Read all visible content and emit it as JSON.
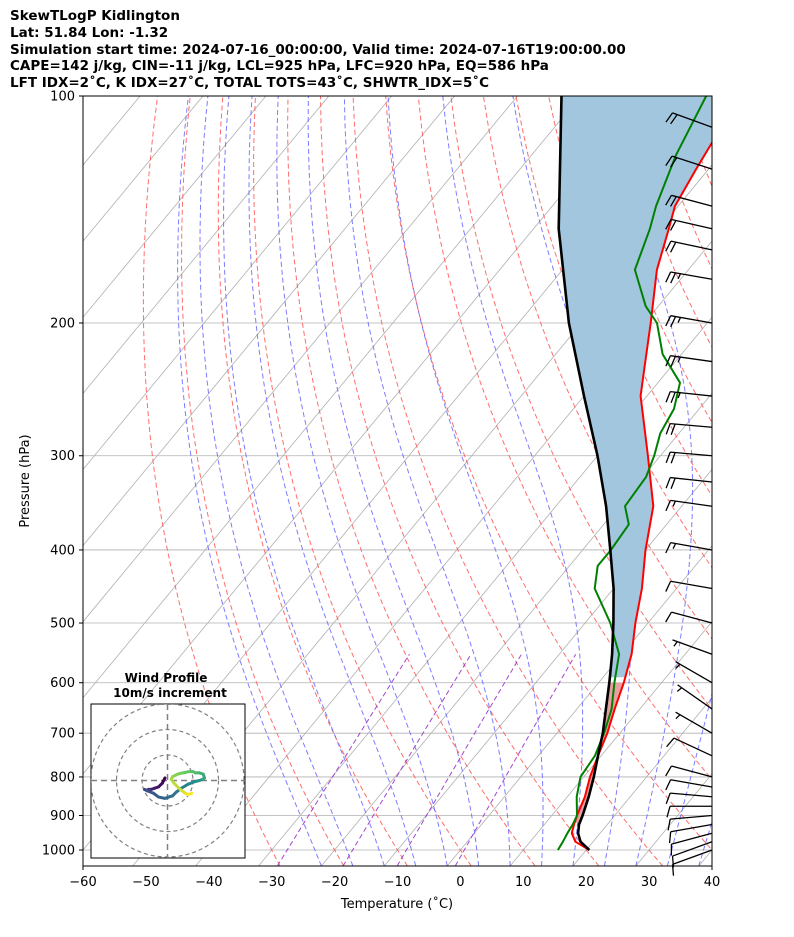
{
  "header": {
    "line1": "SkewTLogP Kidlington",
    "line2": "Lat: 51.84   Lon: -1.32",
    "line3": "Simulation start time: 2024-07-16_00:00:00, Valid time: 2024-07-16T19:00:00.00",
    "line4": "CAPE=142 j/kg, CIN=-11 j/kg, LCL=925 hPa, LFC=920 hPa, EQ=586 hPa",
    "line5": "LFT IDX=2˚C, K IDX=27˚C, TOTAL TOTS=43˚C, SHWTR_IDX=5˚C"
  },
  "chart_data": [
    {
      "type": "line",
      "title": "",
      "xlabel": "Temperature (˚C)",
      "ylabel": "Pressure (hPa)",
      "xlim": [
        -60,
        40
      ],
      "ylim": [
        1050,
        100
      ],
      "y_scale": "log",
      "x_skewed": true,
      "grid": true,
      "x_ticks": [
        "−60",
        "−50",
        "−40",
        "−30",
        "−20",
        "−10",
        "0",
        "10",
        "20",
        "30",
        "40"
      ],
      "y_ticks": [
        "100",
        "200",
        "300",
        "400",
        "500",
        "600",
        "700",
        "800",
        "900",
        "1000"
      ],
      "colors": {
        "temperature": "#ff0000",
        "dewpoint": "#008000",
        "parcel": "#000000",
        "cape_fill": "#a3c6df",
        "cin_fill": "#e8a0a0",
        "dry_adiabats": "#ff5555",
        "moist_adiabats": "#6666ff",
        "mixing_ratio": "#9933cc",
        "isotherms": "#b0b0b0"
      },
      "series": [
        {
          "name": "",
          "p": [
            1000,
            975,
            950,
            925,
            900,
            850,
            800,
            750,
            700,
            650,
            600,
            550,
            500,
            450,
            400,
            350,
            300,
            250,
            230,
            200,
            170,
            150,
            140,
            125,
            110,
            100
          ],
          "values": [
            20.5,
            17.2,
            15.5,
            14.7,
            14.0,
            12.8,
            11.0,
            9.5,
            8.0,
            6.0,
            4.0,
            1.5,
            -2.0,
            -5.5,
            -10.0,
            -14.5,
            -22.0,
            -31.0,
            -34.0,
            -39.0,
            -45.0,
            -48.5,
            -50.5,
            -52.0,
            -53.5,
            -56.0
          ]
        },
        {
          "name": "",
          "p": [
            1000,
            975,
            950,
            925,
            900,
            850,
            800,
            750,
            700,
            650,
            600,
            550,
            500,
            450,
            420,
            400,
            370,
            350,
            320,
            300,
            280,
            260,
            240,
            220,
            200,
            190,
            170,
            150,
            140,
            120,
            100
          ],
          "values": [
            15.5,
            15.2,
            14.8,
            14.5,
            14.0,
            11.5,
            9.5,
            9.0,
            7.5,
            5.5,
            2.5,
            -0.5,
            -6.0,
            -13.0,
            -15.5,
            -15.5,
            -16.0,
            -19.0,
            -19.5,
            -21.0,
            -23.0,
            -24.0,
            -26.5,
            -33.0,
            -38.0,
            -42.0,
            -48.5,
            -51.5,
            -53.5,
            -57.0,
            -60.0
          ]
        },
        {
          "name": "",
          "p": [
            1000,
            975,
            950,
            925,
            900,
            850,
            800,
            750,
            700,
            650,
            600,
            586,
            550,
            500,
            450,
            400,
            350,
            300,
            250,
            200,
            150,
            100
          ],
          "values": [
            20.5,
            18.0,
            16.5,
            15.5,
            14.9,
            13.4,
            11.6,
            9.5,
            7.3,
            4.6,
            1.7,
            0.8,
            -1.6,
            -5.5,
            -10.0,
            -15.6,
            -22.0,
            -30.0,
            -40.0,
            -52.0,
            -66.0,
            -83.0
          ]
        }
      ],
      "barbs": {
        "p": [
          1000,
          975,
          950,
          925,
          900,
          875,
          850,
          825,
          800,
          750,
          700,
          650,
          600,
          550,
          500,
          450,
          400,
          350,
          325,
          300,
          275,
          250,
          225,
          200,
          175,
          160,
          150,
          140,
          125,
          110
        ],
        "speed_kt": [
          10,
          11,
          12,
          12,
          12,
          12,
          11,
          11,
          10,
          8,
          6,
          5,
          5,
          7,
          10,
          12,
          16,
          17,
          19,
          20,
          22,
          23,
          23,
          24,
          23,
          22,
          22,
          21,
          20,
          18
        ],
        "dir_deg": [
          250,
          250,
          255,
          260,
          265,
          270,
          275,
          280,
          285,
          295,
          300,
          305,
          300,
          290,
          285,
          280,
          280,
          278,
          276,
          275,
          275,
          276,
          278,
          280,
          280,
          282,
          283,
          285,
          288,
          290
        ]
      }
    },
    {
      "type": "scatter",
      "title": "Wind Profile",
      "subtitle": "10m/s increment",
      "xlabel": "",
      "ylabel": "",
      "rings_ms": [
        10,
        20,
        30
      ],
      "series": [
        {
          "name": "",
          "u": [
            -1.0,
            -2.0,
            -3.5,
            -5.0,
            -6.5,
            -7.5,
            -8.0,
            -9.0,
            -8.0,
            -5.5,
            -3.5,
            -1.0,
            2.0,
            3.5,
            5.5,
            8.0,
            10.5,
            12.5,
            14.0,
            14.5,
            14.0,
            12.5,
            11.0,
            10.0,
            8.5,
            6.0,
            4.0,
            2.0,
            1.5,
            2.5,
            5.0,
            7.0,
            8.0,
            9.5
          ],
          "v": [
            1.0,
            -1.0,
            -2.5,
            -3.0,
            -3.5,
            -3.5,
            -4.0,
            -3.5,
            -4.0,
            -5.0,
            -6.5,
            -7.0,
            -6.0,
            -4.5,
            -3.0,
            -1.5,
            -0.5,
            0.0,
            0.5,
            1.0,
            2.5,
            3.0,
            3.0,
            3.5,
            3.5,
            3.0,
            2.5,
            1.5,
            0.5,
            -1.0,
            -3.5,
            -5.0,
            -5.5,
            -5.0
          ]
        }
      ]
    }
  ]
}
